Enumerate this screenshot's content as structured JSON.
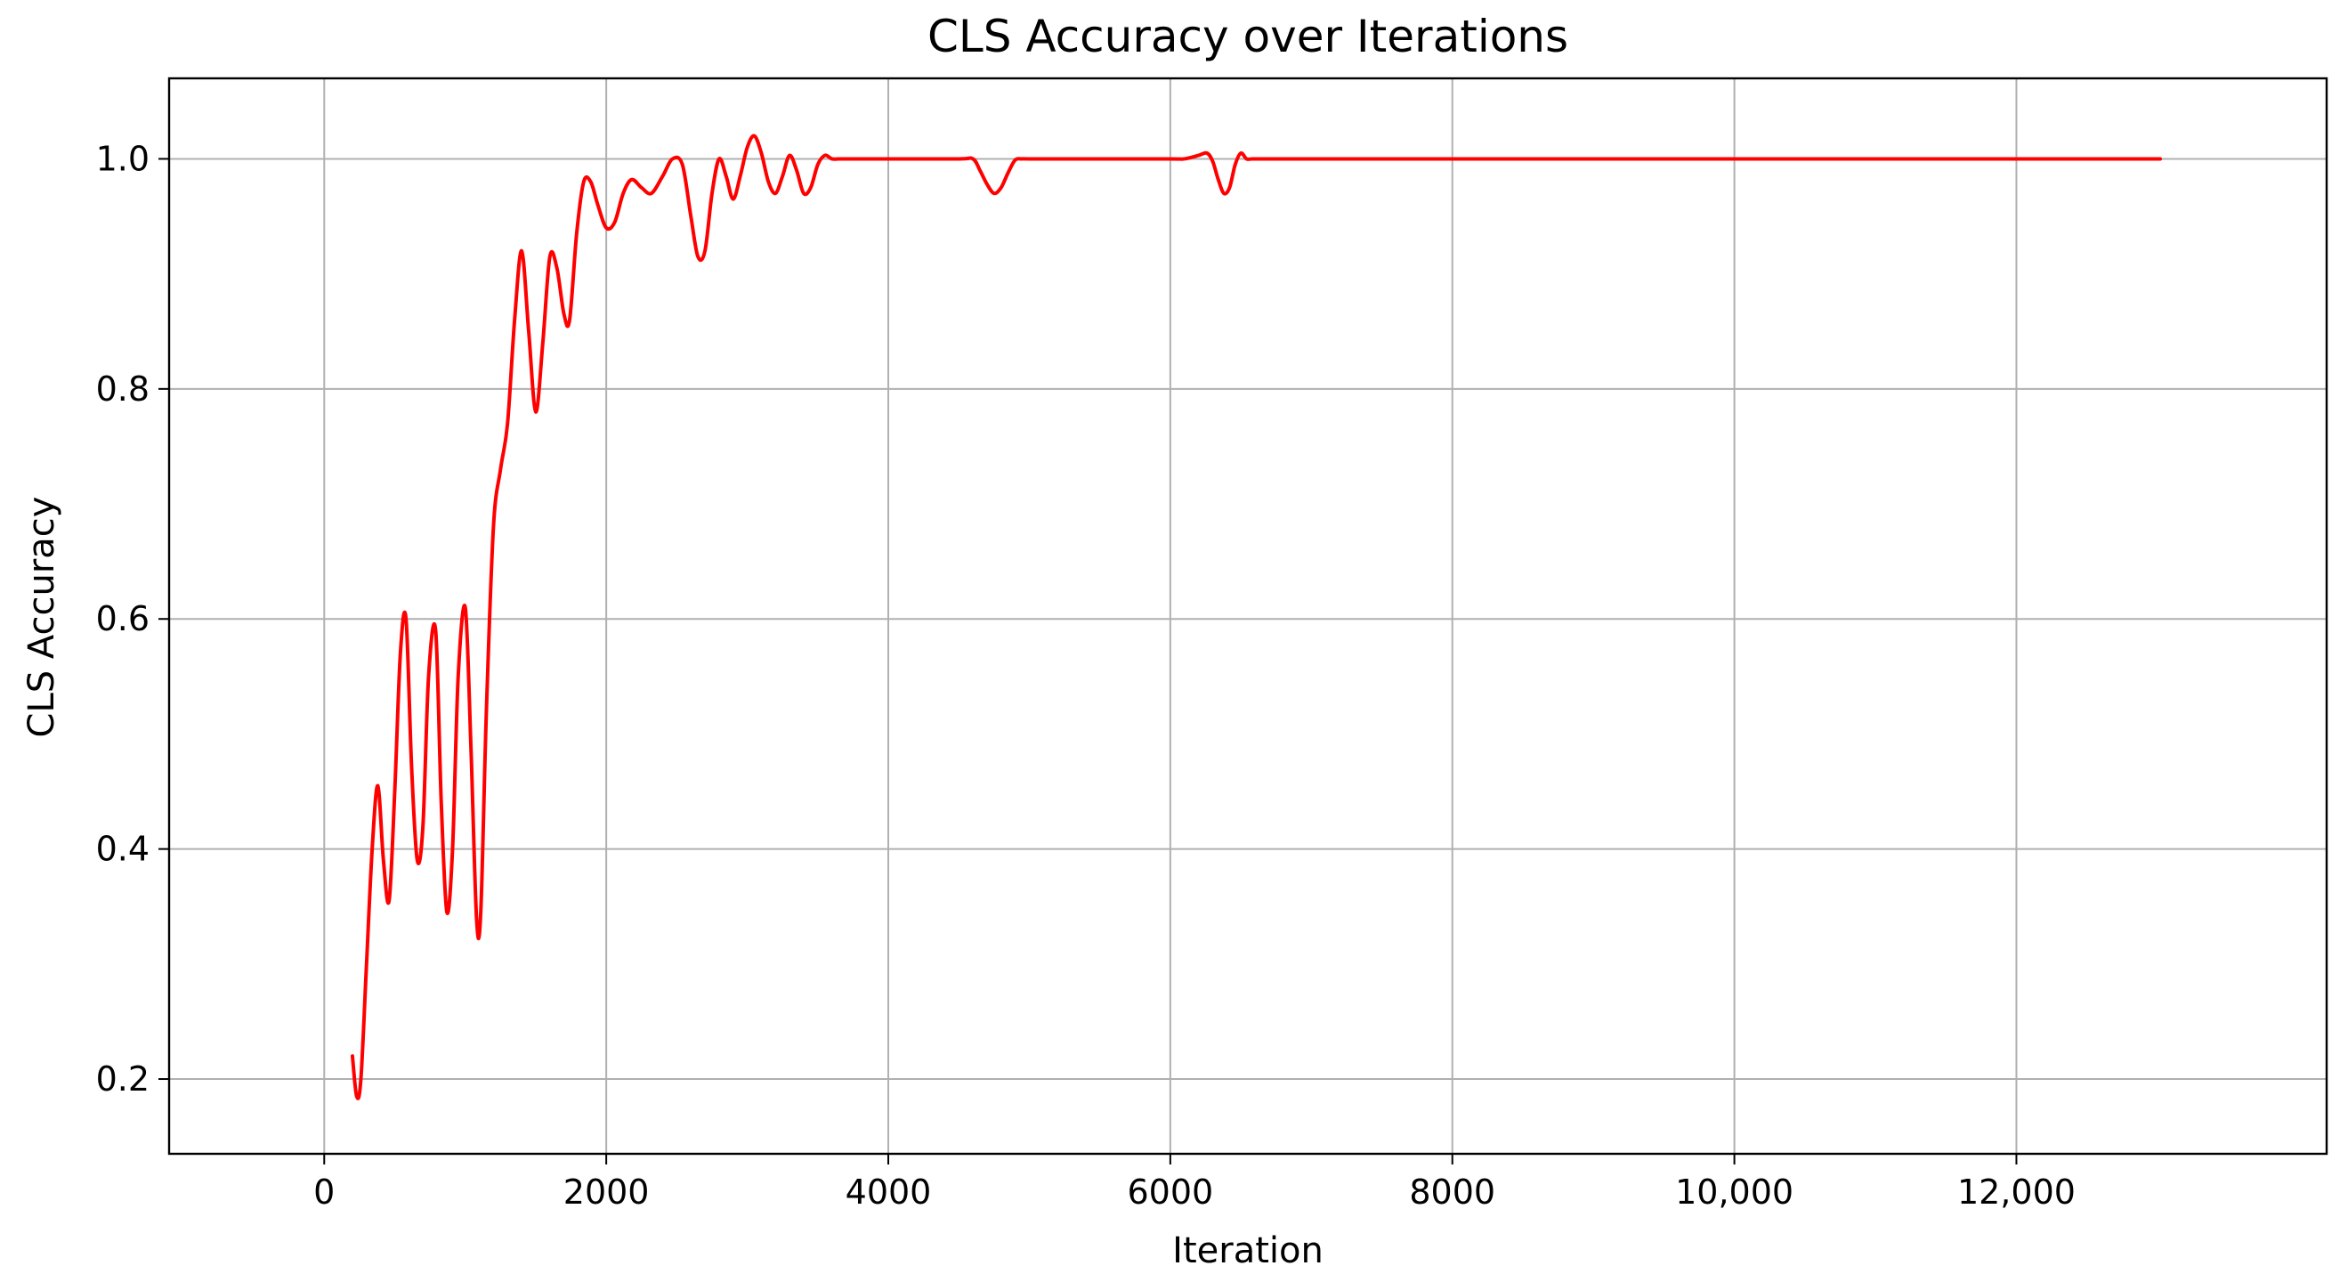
{
  "chart_data": {
    "type": "line",
    "title": "CLS Accuracy over Iterations",
    "xlabel": "Iteration",
    "ylabel": "CLS Accuracy",
    "xlim": [
      -1100,
      14200
    ],
    "ylim": [
      0.135,
      1.07
    ],
    "grid": true,
    "xticks": [
      0,
      2000,
      4000,
      6000,
      8000,
      10000,
      12000
    ],
    "xtick_labels": [
      "0",
      "2000",
      "4000",
      "6000",
      "8000",
      "10,000",
      "12,000"
    ],
    "yticks": [
      0.2,
      0.4,
      0.6,
      0.8,
      1.0
    ],
    "ytick_labels": [
      "0.2",
      "0.4",
      "0.6",
      "0.8",
      "1.0"
    ],
    "series": [
      {
        "color": "#ff0000",
        "x": [
          200,
          230,
          260,
          300,
          340,
          380,
          420,
          460,
          500,
          540,
          580,
          620,
          660,
          700,
          740,
          790,
          830,
          870,
          910,
          950,
          1000,
          1040,
          1080,
          1110,
          1150,
          1200,
          1250,
          1300,
          1350,
          1400,
          1450,
          1500,
          1550,
          1600,
          1650,
          1700,
          1740,
          1790,
          1840,
          1890,
          1940,
          2000,
          2060,
          2120,
          2180,
          2250,
          2320,
          2400,
          2470,
          2540,
          2600,
          2650,
          2700,
          2750,
          2800,
          2850,
          2900,
          2950,
          3000,
          3050,
          3100,
          3150,
          3200,
          3250,
          3300,
          3350,
          3400,
          3450,
          3500,
          3550,
          3600,
          3650,
          3700,
          3750,
          3800,
          4000,
          4500,
          4600,
          4650,
          4700,
          4750,
          4800,
          4850,
          4900,
          4950,
          5000,
          5500,
          6000,
          6100,
          6200,
          6260,
          6300,
          6340,
          6380,
          6420,
          6460,
          6500,
          6540,
          6580,
          6620,
          6700,
          7000,
          8000,
          10000,
          12000,
          13020
        ],
        "values": [
          0.22,
          0.185,
          0.2,
          0.3,
          0.4,
          0.455,
          0.39,
          0.355,
          0.45,
          0.57,
          0.6,
          0.47,
          0.39,
          0.42,
          0.55,
          0.59,
          0.44,
          0.345,
          0.4,
          0.55,
          0.61,
          0.49,
          0.34,
          0.345,
          0.52,
          0.68,
          0.73,
          0.77,
          0.86,
          0.92,
          0.85,
          0.78,
          0.84,
          0.915,
          0.905,
          0.865,
          0.86,
          0.935,
          0.98,
          0.98,
          0.96,
          0.94,
          0.945,
          0.97,
          0.982,
          0.975,
          0.97,
          0.985,
          1.0,
          0.995,
          0.95,
          0.915,
          0.92,
          0.97,
          1.0,
          0.985,
          0.965,
          0.985,
          1.01,
          1.02,
          1.005,
          0.98,
          0.97,
          0.985,
          1.003,
          0.99,
          0.97,
          0.975,
          0.995,
          1.003,
          1.0,
          1.0,
          1.0,
          1.0,
          1.0,
          1.0,
          1.0,
          1.0,
          0.99,
          0.978,
          0.97,
          0.975,
          0.988,
          0.999,
          1.0,
          1.0,
          1.0,
          1.0,
          1.0,
          1.003,
          1.005,
          0.998,
          0.982,
          0.97,
          0.975,
          0.995,
          1.005,
          1.0,
          1.0,
          1.0,
          1.0,
          1.0,
          1.0,
          1.0,
          1.0,
          1.0
        ]
      }
    ]
  }
}
